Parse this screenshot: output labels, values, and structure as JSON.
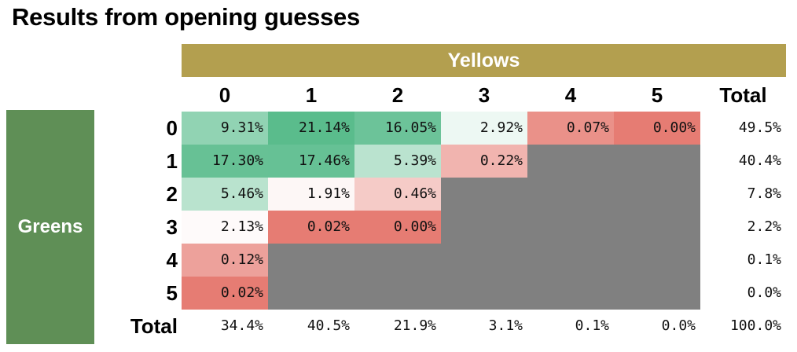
{
  "title": "Results from opening guesses",
  "chart_data": {
    "type": "heatmap",
    "title": "Results from opening guesses",
    "xlabel": "Yellows",
    "ylabel": "Greens",
    "x_categories": [
      "0",
      "1",
      "2",
      "3",
      "4",
      "5"
    ],
    "y_categories": [
      "0",
      "1",
      "2",
      "3",
      "4",
      "5"
    ],
    "total_label": "Total",
    "cells": [
      [
        "9.31%",
        "21.14%",
        "16.05%",
        "2.92%",
        "0.07%",
        "0.00%"
      ],
      [
        "17.30%",
        "17.46%",
        "5.39%",
        "0.22%",
        null,
        null
      ],
      [
        "5.46%",
        "1.91%",
        "0.46%",
        null,
        null,
        null
      ],
      [
        "2.13%",
        "0.02%",
        "0.00%",
        null,
        null,
        null
      ],
      [
        "0.12%",
        null,
        null,
        null,
        null,
        null
      ],
      [
        "0.02%",
        null,
        null,
        null,
        null,
        null
      ]
    ],
    "row_totals": [
      "49.5%",
      "40.4%",
      "7.8%",
      "2.2%",
      "0.1%",
      "0.0%"
    ],
    "col_totals": [
      "34.4%",
      "40.5%",
      "21.9%",
      "3.1%",
      "0.1%",
      "0.0%"
    ],
    "grand_total": "100.0%",
    "colors": {
      "high": "#57bb8a",
      "mid": "#ffffff",
      "low": "#e67c73",
      "unavailable": "#808080",
      "yellow_banner": "#b39f4f",
      "green_banner": "#5f8f56"
    }
  }
}
